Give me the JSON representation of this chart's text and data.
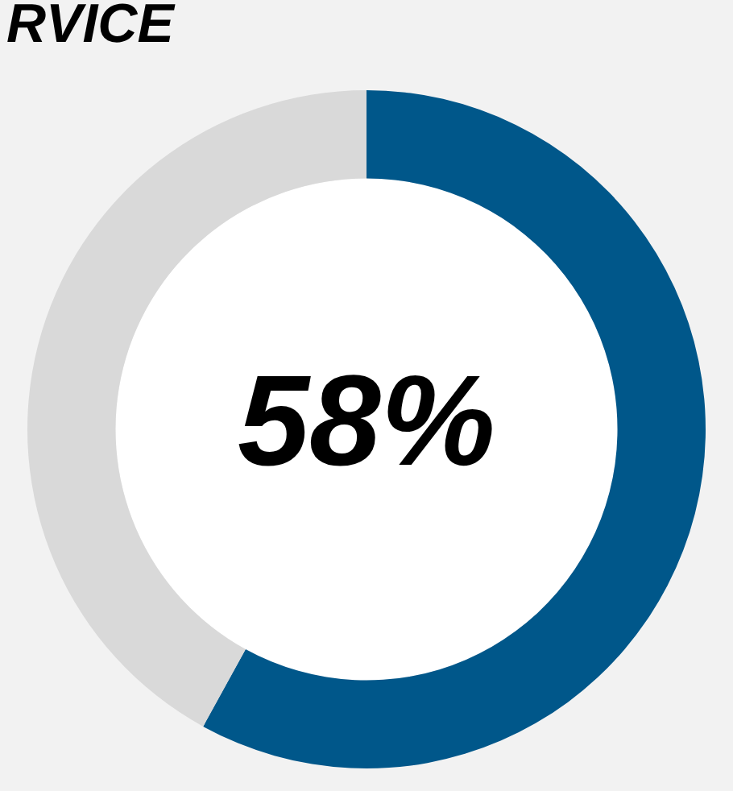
{
  "chart_data": {
    "type": "donut",
    "title": "RVICE",
    "categories": [
      null,
      null
    ],
    "values": [
      58,
      42
    ],
    "colors": [
      "#00578a",
      "#d9d9d9"
    ],
    "value_labels": [
      "58%",
      null
    ],
    "legend": false
  }
}
